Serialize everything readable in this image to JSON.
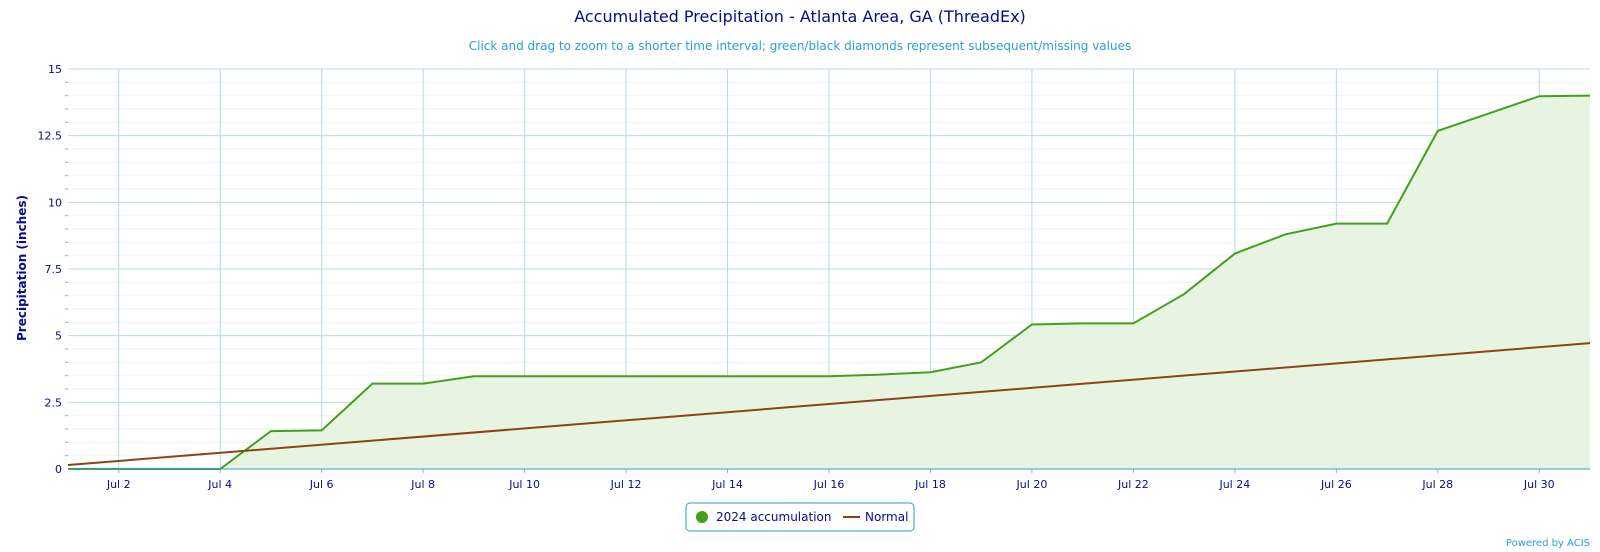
{
  "chart_data": {
    "type": "area",
    "title": "Accumulated Precipitation - Atlanta Area, GA (ThreadEx)",
    "subtitle": "Click and drag to zoom to a shorter time interval; green/black diamonds represent subsequent/missing values",
    "xlabel": "",
    "ylabel": "Precipitation (inches)",
    "ylim": [
      0,
      15
    ],
    "xlim": [
      "2024-07-01",
      "2024-07-31"
    ],
    "y_ticks": [
      "0",
      "2.5",
      "5",
      "7.5",
      "10",
      "12.5",
      "15"
    ],
    "x_ticks": [
      "Jul 2",
      "Jul 4",
      "Jul 6",
      "Jul 8",
      "Jul 10",
      "Jul 12",
      "Jul 14",
      "Jul 16",
      "Jul 18",
      "Jul 20",
      "Jul 22",
      "Jul 24",
      "Jul 26",
      "Jul 28",
      "Jul 30"
    ],
    "grid": true,
    "legend_position": "bottom-center",
    "series": [
      {
        "name": "2024 accumulation",
        "color": "#44a01c",
        "fill": "#e8f4e2",
        "x": [
          "2024-07-01",
          "2024-07-02",
          "2024-07-03",
          "2024-07-04",
          "2024-07-05",
          "2024-07-06",
          "2024-07-07",
          "2024-07-08",
          "2024-07-09",
          "2024-07-10",
          "2024-07-11",
          "2024-07-12",
          "2024-07-13",
          "2024-07-14",
          "2024-07-15",
          "2024-07-16",
          "2024-07-17",
          "2024-07-18",
          "2024-07-19",
          "2024-07-20",
          "2024-07-21",
          "2024-07-22",
          "2024-07-23",
          "2024-07-24",
          "2024-07-25",
          "2024-07-26",
          "2024-07-27",
          "2024-07-28",
          "2024-07-29",
          "2024-07-30",
          "2024-07-31"
        ],
        "values": [
          0,
          0,
          0,
          0,
          1.42,
          1.45,
          3.2,
          3.2,
          3.48,
          3.48,
          3.48,
          3.48,
          3.48,
          3.48,
          3.48,
          3.48,
          3.54,
          3.63,
          4.0,
          5.42,
          5.46,
          5.46,
          6.56,
          8.08,
          8.8,
          9.2,
          9.2,
          12.68,
          13.33,
          13.98,
          14.0
        ]
      },
      {
        "name": "Normal",
        "color": "#8b4513",
        "x": [
          "2024-07-01",
          "2024-07-31"
        ],
        "values": [
          0.15,
          4.72
        ]
      }
    ]
  },
  "credit": "Powered by ACIS"
}
